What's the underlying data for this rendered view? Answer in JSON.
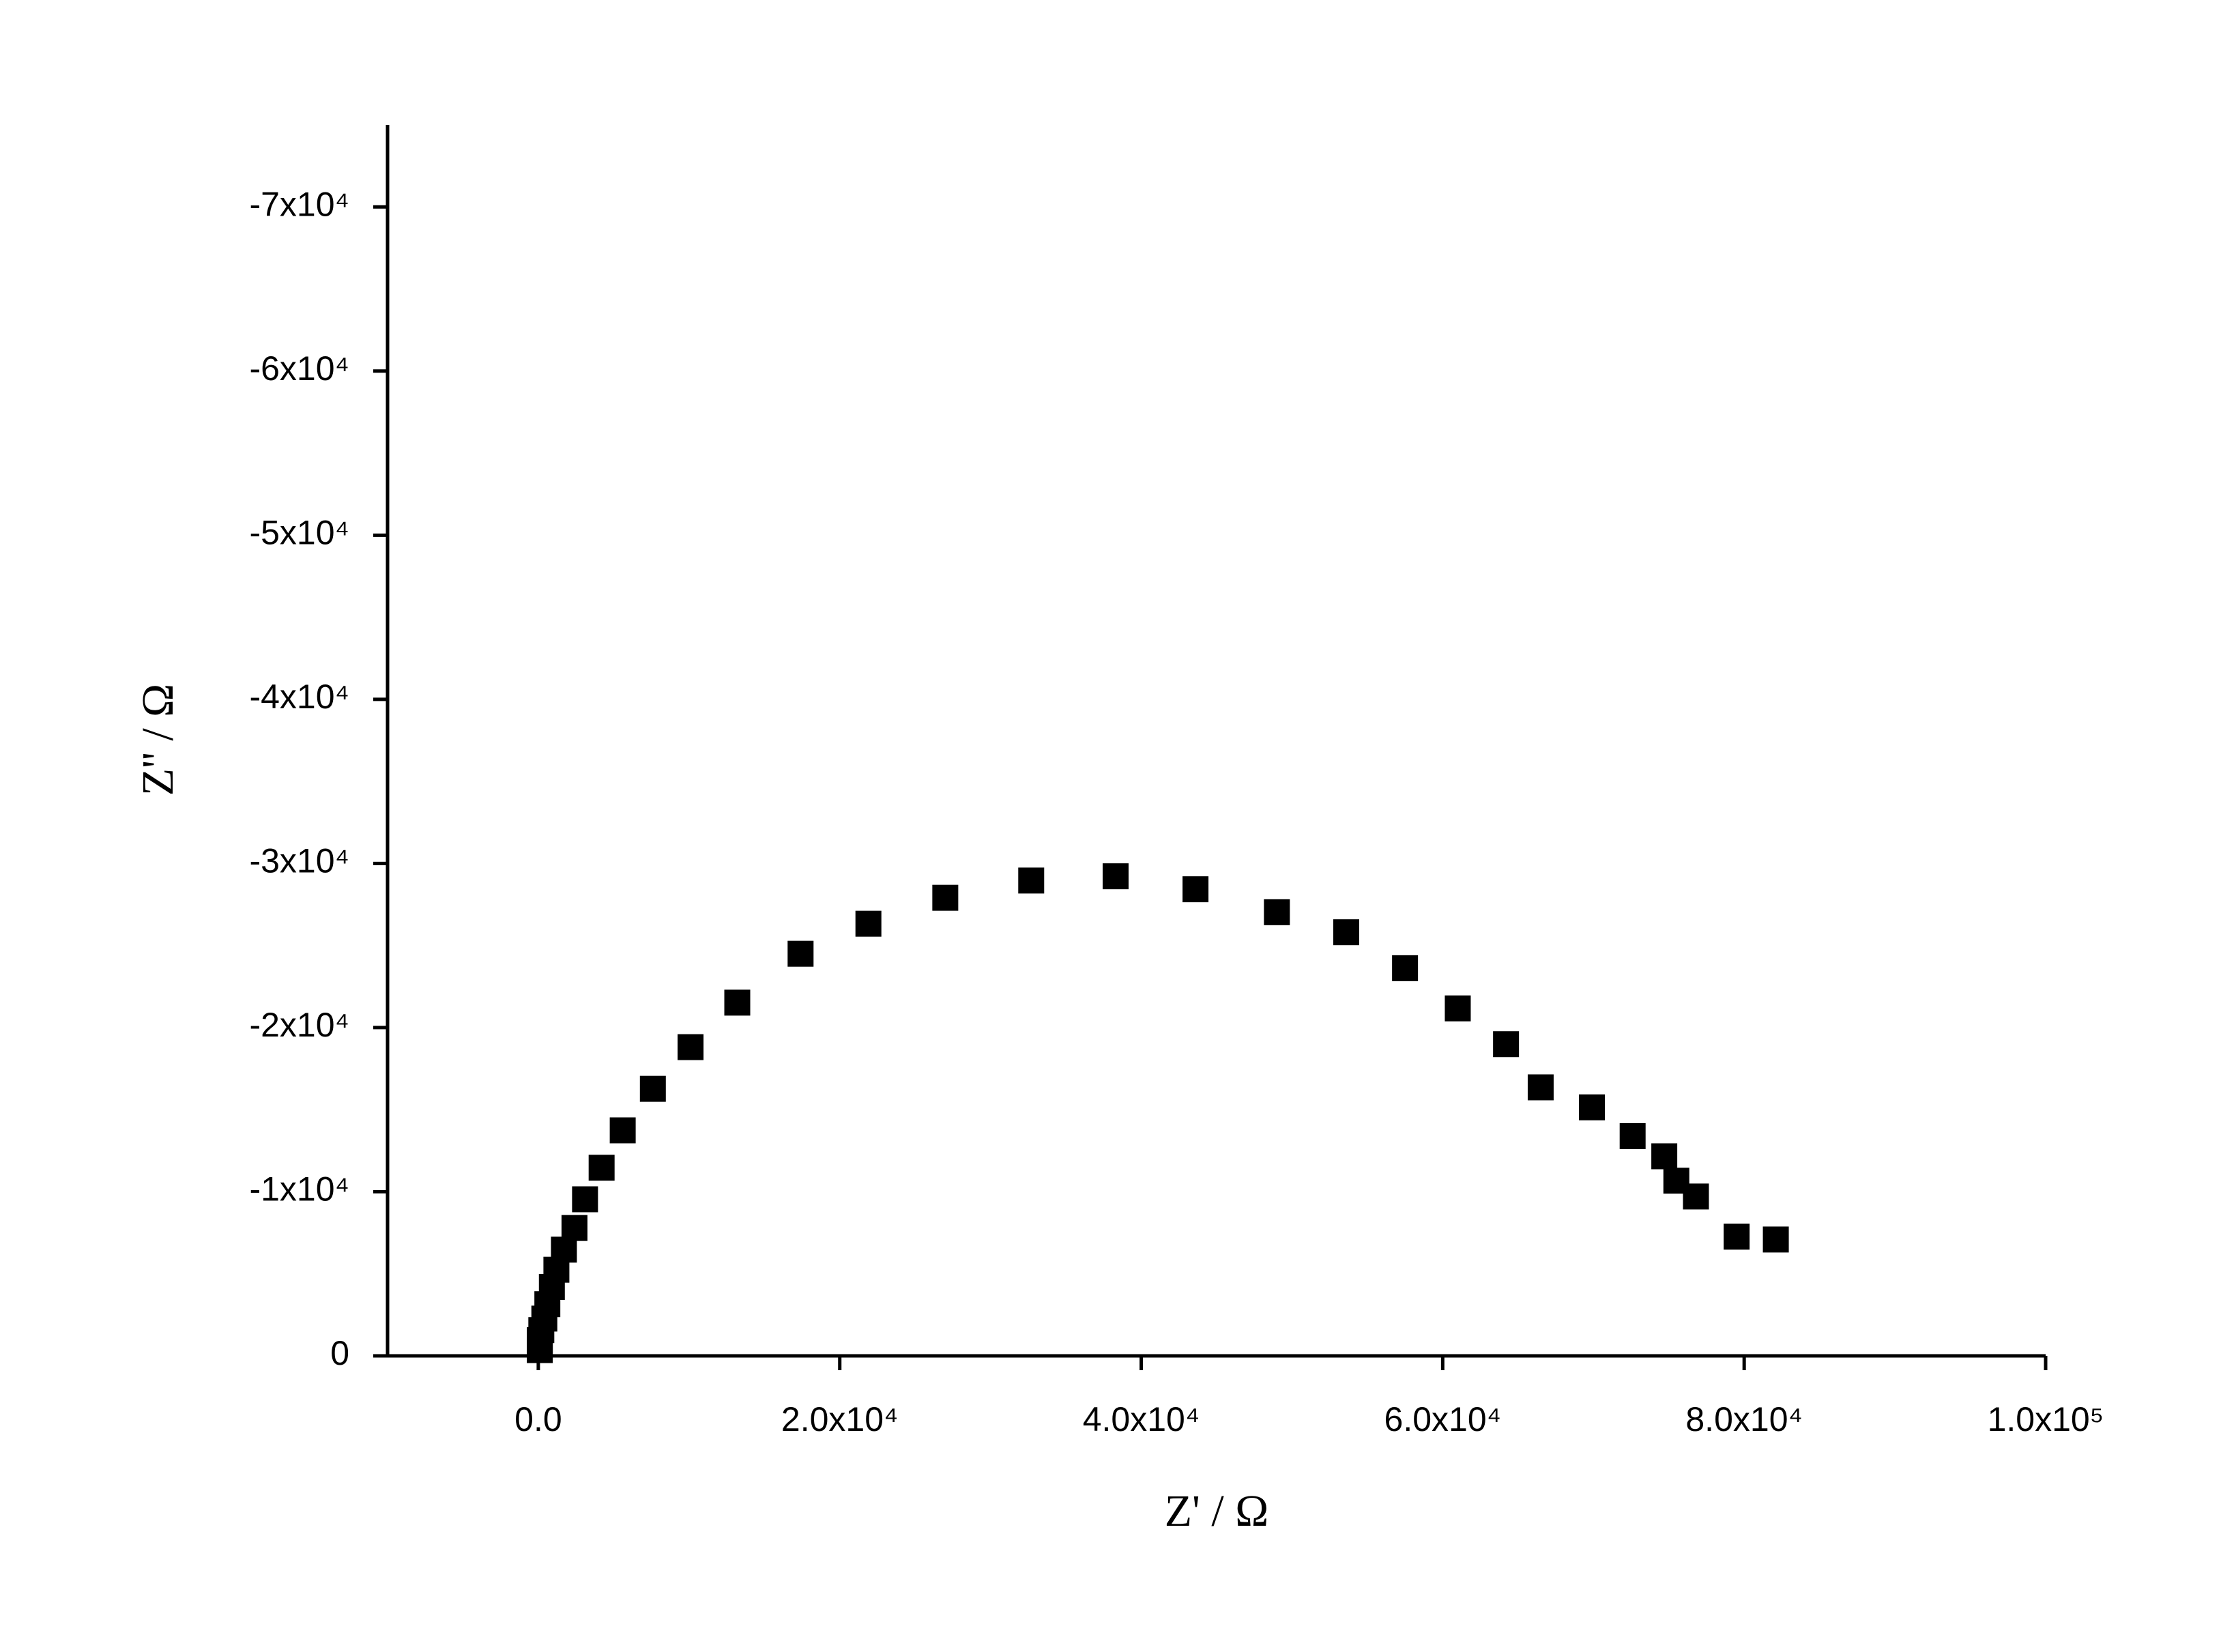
{
  "chart_data": {
    "type": "scatter",
    "x_label": "Z' / Ω",
    "y_label": "Z'' / Ω",
    "marker": "square",
    "color": "#000000",
    "x": [
      82100,
      79500,
      76800,
      75500,
      74700,
      72600,
      69900,
      66500,
      64200,
      61000,
      57500,
      53600,
      49000,
      43600,
      38300,
      32700,
      27000,
      21900,
      17400,
      13200,
      10100,
      7600,
      5600,
      4200,
      3100,
      2400,
      1700,
      1200,
      900,
      600,
      400,
      200,
      100,
      100
    ],
    "values": [
      -7090,
      -7260,
      -9710,
      -10670,
      -12160,
      -13390,
      -15140,
      -16360,
      -18990,
      -21170,
      -23620,
      -25810,
      -27030,
      -28430,
      -29220,
      -28960,
      -27910,
      -26330,
      -24500,
      -21520,
      -18810,
      -16270,
      -13740,
      -11460,
      -9540,
      -7790,
      -6470,
      -5250,
      -4200,
      -3150,
      -2270,
      -1570,
      -960,
      -350
    ],
    "xlim": [
      -10000,
      100000
    ],
    "xticks": [
      {
        "value": 0,
        "label": "0.0"
      },
      {
        "value": 20000,
        "label": "2.0x10⁴"
      },
      {
        "value": 40000,
        "label": "4.0x10⁴"
      },
      {
        "value": 60000,
        "label": "6.0x10⁴"
      },
      {
        "value": 80000,
        "label": "8.0x10⁴"
      },
      {
        "value": 100000,
        "label": "1.0x10⁵"
      }
    ],
    "ylim": [
      0,
      -75000
    ],
    "yticks": [
      0,
      {
        "value": -10000,
        "label": "-1x10⁴"
      },
      {
        "value": -20000,
        "label": "-2x10⁴"
      },
      {
        "value": -30000,
        "label": "-3x10⁴"
      },
      {
        "value": -40000,
        "label": "-4x10⁴"
      },
      {
        "value": -50000,
        "label": "-5x10⁴"
      },
      {
        "value": -60000,
        "label": "-6x10⁴"
      },
      {
        "value": -70000,
        "label": "-7x10⁴"
      }
    ],
    "grid": false
  }
}
